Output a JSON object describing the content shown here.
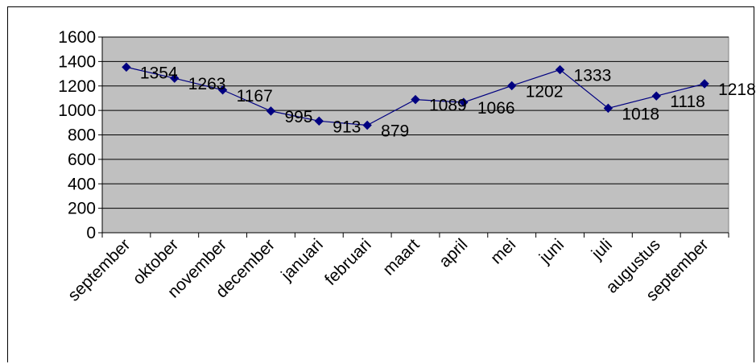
{
  "chart_data": {
    "type": "line",
    "title": "",
    "xlabel": "",
    "ylabel": "",
    "categories": [
      "september",
      "oktober",
      "november",
      "december",
      "januari",
      "februari",
      "maart",
      "april",
      "mei",
      "juni",
      "juli",
      "augustus",
      "september"
    ],
    "series": [
      {
        "values": [
          1354,
          1263,
          1167,
          995,
          913,
          879,
          1089,
          1066,
          1202,
          1333,
          1018,
          1118,
          1218
        ],
        "color": "#000080"
      }
    ],
    "data_labels": [
      "1354",
      "1263",
      "1167",
      "995",
      "913",
      "879",
      "1089",
      "1066",
      "1202",
      "1333",
      "1018",
      "1118",
      "1218"
    ],
    "ylim": [
      0,
      1600
    ],
    "yticks": [
      0,
      200,
      400,
      600,
      800,
      1000,
      1200,
      1400,
      1600
    ],
    "grid": true,
    "legend": "none",
    "plot_background": "#c0c0c0",
    "marker": "diamond"
  }
}
